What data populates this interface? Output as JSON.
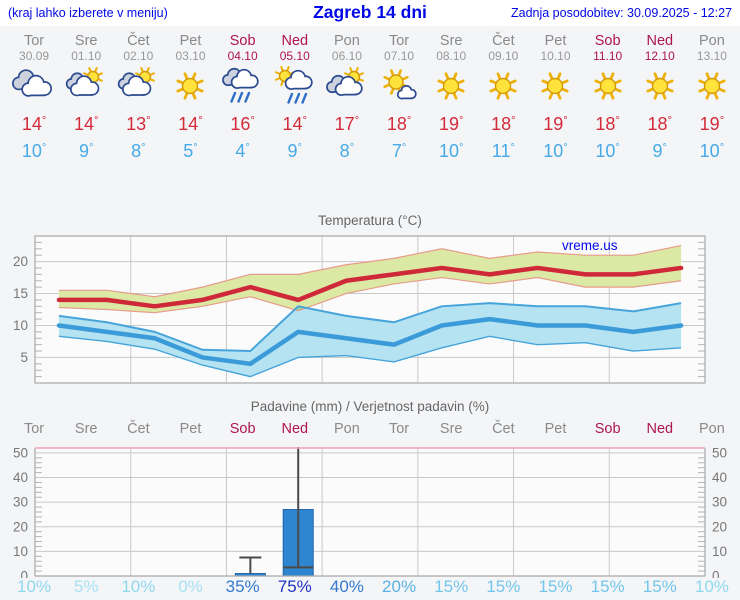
{
  "header": {
    "hint": "(kraj lahko izberete v meniju)",
    "title": "Zagreb 14 dni",
    "updated": "Zadnja posodobitev: 30.09.2025 - 12:27"
  },
  "degree": "°",
  "watermark": "vreme.us",
  "colors": {
    "link_blue": "#0008e6",
    "weekday_gray": "#8a8a8a",
    "weekend_red": "#b0154d",
    "max_temp_red": "#d42b3a",
    "min_temp_blue": "#46aae8",
    "bar_blue": "#2f86d0"
  },
  "days": [
    {
      "name": "Tor",
      "date": "30.09",
      "weekend": false,
      "icon": "cloudy",
      "tmax": 14,
      "tmin": 10,
      "prob": "10%",
      "prob_color": "#8ed8f0"
    },
    {
      "name": "Sre",
      "date": "01.10",
      "weekend": false,
      "icon": "partly-sunny",
      "tmax": 14,
      "tmin": 9,
      "prob": "5%",
      "prob_color": "#a6e2f5"
    },
    {
      "name": "Čet",
      "date": "02.10",
      "weekend": false,
      "icon": "partly-sunny",
      "tmax": 13,
      "tmin": 8,
      "prob": "10%",
      "prob_color": "#8ed8f0"
    },
    {
      "name": "Pet",
      "date": "03.10",
      "weekend": false,
      "icon": "sunny",
      "tmax": 14,
      "tmin": 5,
      "prob": "0%",
      "prob_color": "#a6e2f5"
    },
    {
      "name": "Sob",
      "date": "04.10",
      "weekend": true,
      "icon": "rain",
      "tmax": 16,
      "tmin": 4,
      "prob": "35%",
      "prob_color": "#3579d0"
    },
    {
      "name": "Ned",
      "date": "05.10",
      "weekend": true,
      "icon": "rain-sun",
      "tmax": 14,
      "tmin": 9,
      "prob": "75%",
      "prob_color": "#2231c4"
    },
    {
      "name": "Pon",
      "date": "06.10",
      "weekend": false,
      "icon": "partly-cloudy",
      "tmax": 17,
      "tmin": 8,
      "prob": "40%",
      "prob_color": "#3579d0"
    },
    {
      "name": "Tor",
      "date": "07.10",
      "weekend": false,
      "icon": "mostly-sunny",
      "tmax": 18,
      "tmin": 7,
      "prob": "20%",
      "prob_color": "#5cb2e4"
    },
    {
      "name": "Sre",
      "date": "08.10",
      "weekend": false,
      "icon": "sunny",
      "tmax": 19,
      "tmin": 10,
      "prob": "15%",
      "prob_color": "#72c6ec"
    },
    {
      "name": "Čet",
      "date": "09.10",
      "weekend": false,
      "icon": "sunny",
      "tmax": 18,
      "tmin": 11,
      "prob": "15%",
      "prob_color": "#72c6ec"
    },
    {
      "name": "Pet",
      "date": "10.10",
      "weekend": false,
      "icon": "sunny",
      "tmax": 19,
      "tmin": 10,
      "prob": "15%",
      "prob_color": "#72c6ec"
    },
    {
      "name": "Sob",
      "date": "11.10",
      "weekend": true,
      "icon": "sunny",
      "tmax": 18,
      "tmin": 10,
      "prob": "15%",
      "prob_color": "#72c6ec"
    },
    {
      "name": "Ned",
      "date": "12.10",
      "weekend": true,
      "icon": "sunny",
      "tmax": 18,
      "tmin": 9,
      "prob": "15%",
      "prob_color": "#72c6ec"
    },
    {
      "name": "Pon",
      "date": "13.10",
      "weekend": false,
      "icon": "sunny",
      "tmax": 19,
      "tmin": 10,
      "prob": "10%",
      "prob_color": "#8ed8f0"
    }
  ],
  "chart_data": [
    {
      "type": "line",
      "title": "Temperatura (°C)",
      "watermark": "vreme.us",
      "categories": [
        "Tor 30.09",
        "Sre 01.10",
        "Čet 02.10",
        "Pet 03.10",
        "Sob 04.10",
        "Ned 05.10",
        "Pon 06.10",
        "Tor 07.10",
        "Sre 08.10",
        "Čet 09.10",
        "Pet 10.10",
        "Sob 11.10",
        "Ned 12.10",
        "Pon 13.10"
      ],
      "ylim": [
        1,
        24
      ],
      "yticks": [
        5,
        10,
        15,
        20
      ],
      "grid": true,
      "series": [
        {
          "name": "max temperature",
          "color": "#cf2839",
          "values": [
            14,
            14,
            13,
            14,
            16,
            14,
            17,
            18,
            19,
            18,
            19,
            18,
            18,
            19
          ]
        },
        {
          "name": "max temp range high",
          "color": "#e79b8b",
          "values": [
            15.5,
            15.5,
            14.5,
            16,
            18,
            18,
            19.5,
            20.5,
            22,
            20.5,
            21.5,
            21,
            21,
            22.5
          ]
        },
        {
          "name": "max temp range low",
          "color": "#e79b8b",
          "values": [
            12.8,
            12.5,
            12,
            13,
            14.5,
            12.3,
            15,
            16.5,
            17.5,
            16.5,
            17.5,
            16,
            16,
            17
          ]
        },
        {
          "name": "min temperature",
          "color": "#3b9bd8",
          "values": [
            10,
            9,
            8,
            5,
            4,
            9,
            8,
            7,
            10,
            11,
            10,
            10,
            9,
            10
          ]
        },
        {
          "name": "min temp range high",
          "color": "#46a4da",
          "values": [
            11.5,
            10.5,
            9,
            6.2,
            6,
            13,
            11.5,
            10.5,
            13,
            13.5,
            13,
            13,
            12.2,
            13.5
          ]
        },
        {
          "name": "min temp range low",
          "color": "#46a4da",
          "values": [
            8.3,
            7.5,
            6.3,
            3.8,
            2,
            5,
            5.3,
            4.3,
            6.5,
            8.3,
            7,
            7.3,
            6,
            6.5
          ]
        }
      ],
      "band_fills": {
        "max_band": "#dce9a4",
        "min_band": "#b5e3f2",
        "overlap": "#7cc868"
      }
    },
    {
      "type": "bar",
      "title": "Padavine (mm) / Verjetnost padavin (%)",
      "categories": [
        "Tor",
        "Sre",
        "Čet",
        "Pet",
        "Sob",
        "Ned",
        "Pon",
        "Tor",
        "Sre",
        "Čet",
        "Pet",
        "Sob",
        "Ned",
        "Pon"
      ],
      "values": [
        0,
        0,
        0,
        0,
        1,
        27,
        0,
        0,
        0,
        0,
        0,
        0,
        0,
        0
      ],
      "whiskers": [
        null,
        null,
        null,
        null,
        {
          "low": 1,
          "high": 7.5,
          "cap_high": true,
          "cap_low": false
        },
        {
          "low": 3.5,
          "high": 55,
          "cap_high": false,
          "cap_low": true
        },
        null,
        null,
        null,
        null,
        null,
        null,
        null,
        null
      ],
      "probabilities_percent": [
        10,
        5,
        10,
        0,
        35,
        75,
        40,
        20,
        15,
        15,
        15,
        15,
        15,
        10
      ],
      "ylim": [
        0,
        52
      ],
      "yticks": [
        0,
        10,
        20,
        30,
        40,
        50
      ],
      "bar_color": "#2f86d0"
    }
  ]
}
